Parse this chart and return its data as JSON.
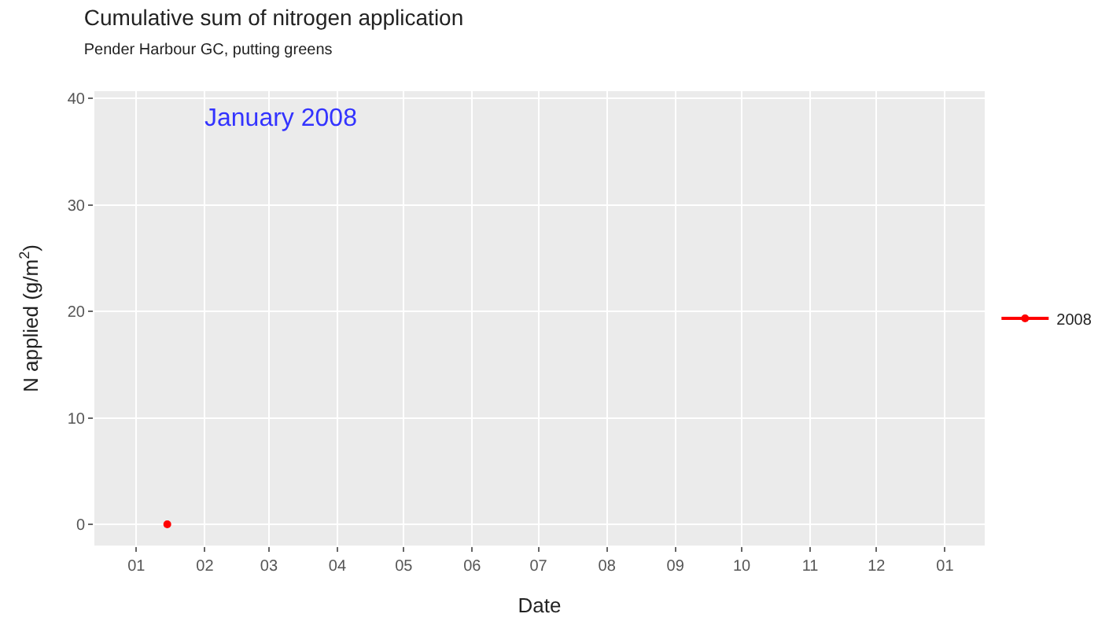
{
  "chart_data": {
    "type": "line",
    "title": "Cumulative sum of nitrogen application",
    "subtitle": "Pender Harbour GC, putting greens",
    "xlabel": "Date",
    "ylabel": "N applied (g/m$^{2}$)",
    "annotations": [
      "January 2008"
    ],
    "series": [
      {
        "name": "2008",
        "color": "#ff0000",
        "x": [
          "2008-01-15"
        ],
        "values": [
          0
        ]
      }
    ],
    "xlim": [
      "2007-12-13",
      "2009-01-19"
    ],
    "xticks": [
      {
        "value": "2008-01-01",
        "label": "01"
      },
      {
        "value": "2008-02-01",
        "label": "02"
      },
      {
        "value": "2008-03-01",
        "label": "03"
      },
      {
        "value": "2008-04-01",
        "label": "04"
      },
      {
        "value": "2008-05-01",
        "label": "05"
      },
      {
        "value": "2008-06-01",
        "label": "06"
      },
      {
        "value": "2008-07-01",
        "label": "07"
      },
      {
        "value": "2008-08-01",
        "label": "08"
      },
      {
        "value": "2008-09-01",
        "label": "09"
      },
      {
        "value": "2008-10-01",
        "label": "10"
      },
      {
        "value": "2008-11-01",
        "label": "11"
      },
      {
        "value": "2008-12-01",
        "label": "12"
      },
      {
        "value": "2009-01-01",
        "label": "01"
      }
    ],
    "ylim": [
      -2,
      40.7
    ],
    "yticks": [
      0,
      10,
      20,
      30,
      40
    ],
    "grid": true,
    "legend": "right",
    "marker": "circle",
    "line_style": "solid"
  }
}
